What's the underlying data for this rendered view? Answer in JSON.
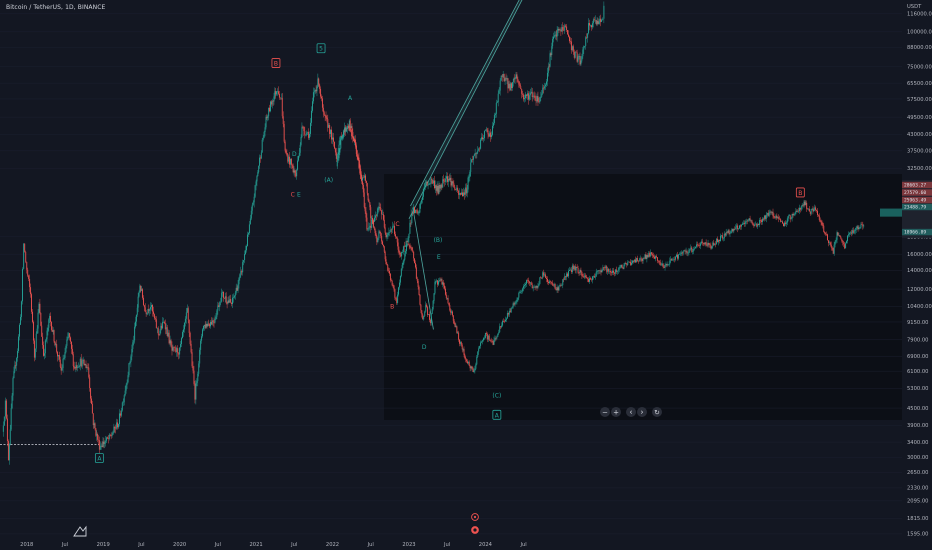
{
  "header": {
    "symbol": "Bitcoin / TetherUS, 1D, BINANCE"
  },
  "colors": {
    "background": "#131722",
    "up": "#26a69a",
    "down": "#ef5350",
    "axis_text": "#b2b5be",
    "channel": "#4ea7a0"
  },
  "chart_data": {
    "type": "candlestick",
    "y_scale": "log",
    "y_unit_label": "USDT",
    "ylim": [
      1480,
      130000
    ],
    "y_ticks": [
      {
        "label": "116000.00",
        "v": 116000
      },
      {
        "label": "100000.00",
        "v": 100000
      },
      {
        "label": "88000.00",
        "v": 88000
      },
      {
        "label": "75000.00",
        "v": 75000
      },
      {
        "label": "65500.00",
        "v": 65500
      },
      {
        "label": "57500.00",
        "v": 57500
      },
      {
        "label": "49500.00",
        "v": 49500
      },
      {
        "label": "43000.00",
        "v": 43000
      },
      {
        "label": "37500.00",
        "v": 37500
      },
      {
        "label": "32500.00",
        "v": 32500
      },
      {
        "label": "18500.00",
        "v": 18500
      },
      {
        "label": "16000.00",
        "v": 16000
      },
      {
        "label": "14000.00",
        "v": 14000
      },
      {
        "label": "12000.00",
        "v": 12000
      },
      {
        "label": "10400.00",
        "v": 10400
      },
      {
        "label": "9150.00",
        "v": 9150
      },
      {
        "label": "7900.00",
        "v": 7900
      },
      {
        "label": "6900.00",
        "v": 6900
      },
      {
        "label": "6100.00",
        "v": 6100
      },
      {
        "label": "5300.00",
        "v": 5300
      },
      {
        "label": "4500.00",
        "v": 4500
      },
      {
        "label": "3900.00",
        "v": 3900
      },
      {
        "label": "3400.00",
        "v": 3400
      },
      {
        "label": "3000.00",
        "v": 3000
      },
      {
        "label": "2650.00",
        "v": 2650
      },
      {
        "label": "2330.00",
        "v": 2330
      },
      {
        "label": "2095.00",
        "v": 2095
      },
      {
        "label": "1815.00",
        "v": 1815
      },
      {
        "label": "1595.00",
        "v": 1595
      }
    ],
    "x_ticks": [
      {
        "label": "2018",
        "t": 2018.0
      },
      {
        "label": "Jul",
        "t": 2018.5
      },
      {
        "label": "2019",
        "t": 2019.0
      },
      {
        "label": "Jul",
        "t": 2019.5
      },
      {
        "label": "2020",
        "t": 2020.0
      },
      {
        "label": "Jul",
        "t": 2020.5
      },
      {
        "label": "2021",
        "t": 2021.0
      },
      {
        "label": "Jul",
        "t": 2021.5
      },
      {
        "label": "2022",
        "t": 2022.0
      },
      {
        "label": "Jul",
        "t": 2022.5
      },
      {
        "label": "2023",
        "t": 2023.0
      },
      {
        "label": "Jul",
        "t": 2023.5
      },
      {
        "label": "2024",
        "t": 2024.0
      },
      {
        "label": "Jul",
        "t": 2024.5
      }
    ],
    "x_range": [
      2017.65,
      2029.45
    ],
    "history_path": [
      [
        2017.68,
        3700
      ],
      [
        2017.72,
        4700
      ],
      [
        2017.76,
        3000
      ],
      [
        2017.82,
        5600
      ],
      [
        2017.88,
        7300
      ],
      [
        2017.93,
        10800
      ],
      [
        2017.96,
        17500
      ],
      [
        2018.0,
        14000
      ],
      [
        2018.05,
        11500
      ],
      [
        2018.1,
        7000
      ],
      [
        2018.16,
        10500
      ],
      [
        2018.22,
        7000
      ],
      [
        2018.3,
        9500
      ],
      [
        2018.38,
        7500
      ],
      [
        2018.45,
        6100
      ],
      [
        2018.55,
        8300
      ],
      [
        2018.62,
        6300
      ],
      [
        2018.7,
        6600
      ],
      [
        2018.8,
        6300
      ],
      [
        2018.87,
        4000
      ],
      [
        2018.95,
        3300
      ],
      [
        2019.08,
        3500
      ],
      [
        2019.2,
        4000
      ],
      [
        2019.3,
        5500
      ],
      [
        2019.4,
        8000
      ],
      [
        2019.48,
        12500
      ],
      [
        2019.55,
        10000
      ],
      [
        2019.62,
        10500
      ],
      [
        2019.72,
        8300
      ],
      [
        2019.8,
        9200
      ],
      [
        2019.9,
        7200
      ],
      [
        2020.0,
        7200
      ],
      [
        2020.1,
        10000
      ],
      [
        2020.2,
        5000
      ],
      [
        2020.3,
        8800
      ],
      [
        2020.45,
        9300
      ],
      [
        2020.55,
        11500
      ],
      [
        2020.68,
        10600
      ],
      [
        2020.8,
        13500
      ],
      [
        2020.9,
        19000
      ],
      [
        2021.0,
        29000
      ],
      [
        2021.08,
        40000
      ],
      [
        2021.13,
        48000
      ],
      [
        2021.2,
        56000
      ],
      [
        2021.28,
        63000
      ],
      [
        2021.33,
        57000
      ],
      [
        2021.38,
        37000
      ],
      [
        2021.45,
        34000
      ],
      [
        2021.52,
        30500
      ],
      [
        2021.6,
        45000
      ],
      [
        2021.7,
        43000
      ],
      [
        2021.75,
        60000
      ],
      [
        2021.82,
        67000
      ],
      [
        2021.88,
        50000
      ],
      [
        2021.95,
        46000
      ],
      [
        2022.05,
        36000
      ],
      [
        2022.12,
        43000
      ],
      [
        2022.22,
        47000
      ],
      [
        2022.3,
        39000
      ],
      [
        2022.38,
        29500
      ],
      [
        2022.45,
        20000
      ],
      [
        2022.55,
        21000
      ],
      [
        2022.62,
        24000
      ],
      [
        2022.7,
        19000
      ],
      [
        2022.8,
        20000
      ],
      [
        2022.87,
        16000
      ],
      [
        2022.95,
        16700
      ],
      [
        2023.05,
        23000
      ],
      [
        2023.12,
        22000
      ],
      [
        2023.2,
        28000
      ],
      [
        2023.3,
        29500
      ],
      [
        2023.38,
        27000
      ],
      [
        2023.48,
        30500
      ],
      [
        2023.55,
        29200
      ],
      [
        2023.65,
        26000
      ],
      [
        2023.75,
        27000
      ],
      [
        2023.82,
        35000
      ],
      [
        2023.9,
        37500
      ],
      [
        2024.0,
        44000
      ],
      [
        2024.08,
        43000
      ],
      [
        2024.18,
        62000
      ],
      [
        2024.22,
        71000
      ],
      [
        2024.32,
        63000
      ],
      [
        2024.4,
        70000
      ],
      [
        2024.5,
        58000
      ],
      [
        2024.6,
        60000
      ],
      [
        2024.7,
        57000
      ],
      [
        2024.8,
        68000
      ],
      [
        2024.88,
        93000
      ],
      [
        2024.95,
        100000
      ],
      [
        2025.05,
        104000
      ],
      [
        2025.15,
        84000
      ],
      [
        2025.25,
        78000
      ],
      [
        2025.35,
        104000
      ],
      [
        2025.45,
        110000
      ],
      [
        2025.52,
        108000
      ],
      [
        2025.55,
        120000
      ]
    ],
    "projection_path": [
      [
        2022.05,
        33000
      ],
      [
        2022.12,
        42000
      ],
      [
        2022.2,
        47000
      ],
      [
        2022.3,
        39000
      ],
      [
        2022.38,
        29000
      ],
      [
        2022.42,
        31000
      ],
      [
        2022.5,
        22000
      ],
      [
        2022.58,
        18000
      ],
      [
        2022.62,
        19500
      ],
      [
        2022.7,
        15000
      ],
      [
        2022.78,
        12500
      ],
      [
        2022.84,
        10700
      ],
      [
        2022.9,
        14000
      ],
      [
        2022.98,
        17500
      ],
      [
        2023.05,
        16500
      ],
      [
        2023.12,
        12000
      ],
      [
        2023.18,
        9200
      ],
      [
        2023.22,
        10500
      ],
      [
        2023.28,
        9000
      ],
      [
        2023.34,
        12500
      ],
      [
        2023.42,
        13000
      ],
      [
        2023.5,
        11000
      ],
      [
        2023.58,
        9400
      ],
      [
        2023.65,
        8000
      ],
      [
        2023.72,
        7000
      ],
      [
        2023.8,
        6300
      ],
      [
        2023.85,
        6000
      ],
      [
        2023.9,
        7200
      ],
      [
        2024.0,
        8200
      ],
      [
        2024.1,
        7700
      ],
      [
        2024.2,
        8800
      ],
      [
        2024.3,
        9800
      ],
      [
        2024.4,
        11000
      ],
      [
        2024.5,
        12200
      ],
      [
        2024.55,
        12800
      ],
      [
        2024.65,
        12000
      ],
      [
        2024.75,
        13600
      ],
      [
        2024.85,
        12600
      ],
      [
        2024.95,
        12000
      ],
      [
        2025.05,
        13300
      ],
      [
        2025.15,
        14400
      ],
      [
        2025.25,
        13700
      ],
      [
        2025.35,
        12900
      ],
      [
        2025.45,
        13600
      ],
      [
        2025.55,
        14400
      ],
      [
        2025.65,
        13600
      ],
      [
        2025.75,
        14300
      ],
      [
        2025.85,
        14700
      ],
      [
        2025.95,
        15200
      ],
      [
        2026.05,
        15400
      ],
      [
        2026.15,
        16000
      ],
      [
        2026.25,
        15200
      ],
      [
        2026.35,
        14300
      ],
      [
        2026.45,
        15400
      ],
      [
        2026.55,
        16000
      ],
      [
        2026.65,
        16300
      ],
      [
        2026.75,
        17000
      ],
      [
        2026.85,
        17600
      ],
      [
        2026.95,
        17100
      ],
      [
        2027.05,
        18100
      ],
      [
        2027.15,
        19000
      ],
      [
        2027.25,
        19600
      ],
      [
        2027.35,
        20200
      ],
      [
        2027.45,
        21100
      ],
      [
        2027.55,
        20300
      ],
      [
        2027.65,
        21700
      ],
      [
        2027.75,
        22500
      ],
      [
        2027.85,
        21100
      ],
      [
        2027.9,
        20000
      ],
      [
        2027.95,
        21500
      ],
      [
        2028.05,
        22300
      ],
      [
        2028.12,
        23600
      ],
      [
        2028.18,
        24300
      ],
      [
        2028.25,
        22600
      ],
      [
        2028.32,
        23200
      ],
      [
        2028.38,
        21000
      ],
      [
        2028.45,
        19000
      ],
      [
        2028.5,
        17400
      ],
      [
        2028.55,
        16400
      ],
      [
        2028.6,
        18800
      ],
      [
        2028.65,
        18000
      ],
      [
        2028.7,
        17000
      ],
      [
        2028.75,
        18700
      ],
      [
        2028.85,
        19800
      ],
      [
        2028.95,
        20500
      ]
    ],
    "support_line": {
      "t0": 2017.65,
      "t1": 2018.95,
      "v": 3330
    },
    "channel": [
      {
        "from": [
          2023.0,
          21400
        ],
        "to": [
          2026.3,
          1200000
        ]
      },
      {
        "from": [
          2023.02,
          23800
        ],
        "to": [
          2026.42,
          1380000
        ]
      }
    ],
    "wave_labels": [
      {
        "text": "A",
        "t": 2018.95,
        "v": 2970,
        "color": "#26a69a",
        "boxed": true
      },
      {
        "text": "B",
        "t": 2021.26,
        "v": 77000,
        "color": "#ef5350",
        "boxed": true
      },
      {
        "text": "5",
        "t": 2021.85,
        "v": 87000,
        "color": "#26a69a",
        "boxed": true
      },
      {
        "text": "D",
        "t": 2021.5,
        "v": 36500,
        "color": "#26a69a",
        "boxed": false
      },
      {
        "text": "C",
        "t": 2021.48,
        "v": 26200,
        "color": "#ef5350",
        "boxed": false
      },
      {
        "text": "E",
        "t": 2021.56,
        "v": 26200,
        "color": "#26a69a",
        "boxed": false
      },
      {
        "text": "A",
        "t": 2022.23,
        "v": 58000,
        "color": "#26a69a",
        "boxed": false
      },
      {
        "text": "(A)",
        "t": 2021.95,
        "v": 29500,
        "color": "#26a69a",
        "boxed": false
      },
      {
        "text": "C",
        "t": 2022.85,
        "v": 20500,
        "color": "#ef5350",
        "boxed": false
      },
      {
        "text": "(B)",
        "t": 2023.38,
        "v": 18000,
        "color": "#26a69a",
        "boxed": false
      },
      {
        "text": "E",
        "t": 2023.39,
        "v": 15600,
        "color": "#26a69a",
        "boxed": false
      },
      {
        "text": "B",
        "t": 2022.78,
        "v": 10400,
        "color": "#ef5350",
        "boxed": false
      },
      {
        "text": "D",
        "t": 2023.2,
        "v": 7450,
        "color": "#26a69a",
        "boxed": false
      },
      {
        "text": "(C)",
        "t": 2024.15,
        "v": 5000,
        "color": "#26a69a",
        "boxed": false
      },
      {
        "text": "A",
        "t": 2024.15,
        "v": 4240,
        "color": "#26a69a",
        "boxed": true
      },
      {
        "text": "B",
        "t": 2028.12,
        "v": 26500,
        "color": "#ef5350",
        "boxed": true
      }
    ],
    "right_price_tags": [
      {
        "label": "28603.27",
        "v": 28300,
        "color": "#ef5350"
      },
      {
        "label": "27579.60",
        "v": 26600,
        "color": "#ef5350"
      },
      {
        "label": "25963.49",
        "v": 25000,
        "color": "#ef5350"
      },
      {
        "label": "23488.79",
        "v": 23600,
        "color": "#26a69a"
      },
      {
        "label": "18966.89",
        "v": 19200,
        "color": "#26a69a"
      }
    ]
  },
  "navigation": {
    "zoom_out": "−",
    "zoom_in": "+",
    "scroll_left": "‹",
    "scroll_right": "›",
    "reset": "↻"
  }
}
